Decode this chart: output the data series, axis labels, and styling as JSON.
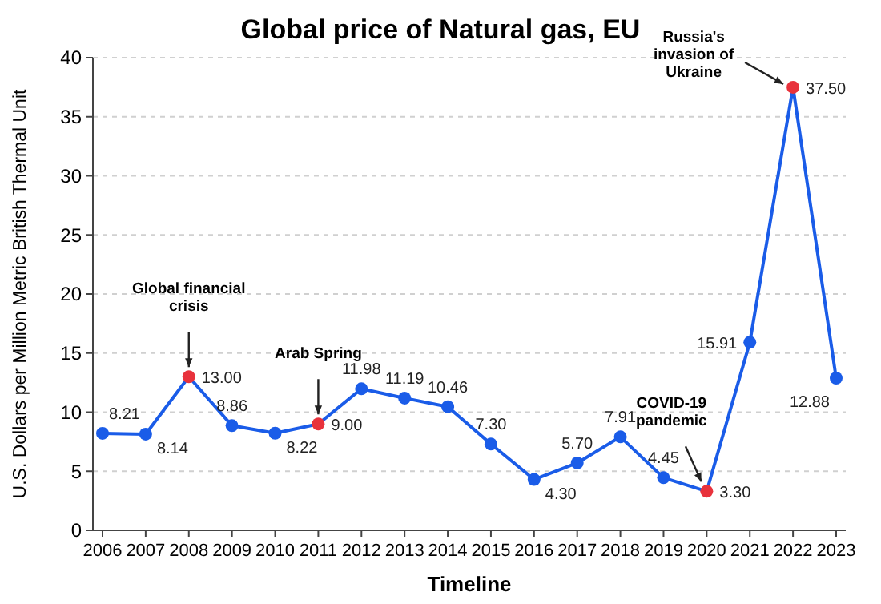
{
  "chart_data": {
    "type": "line",
    "title": "Global price of Natural gas, EU",
    "xlabel": "Timeline",
    "ylabel": "U.S. Dollars per Million Metric British Thermal Unit",
    "categories": [
      "2006",
      "2007",
      "2008",
      "2009",
      "2010",
      "2011",
      "2012",
      "2013",
      "2014",
      "2015",
      "2016",
      "2017",
      "2018",
      "2019",
      "2020",
      "2021",
      "2022",
      "2023"
    ],
    "series": [
      {
        "color": "#1a5ce8",
        "colors": [
          "#1a5ce8",
          "#1a5ce8",
          "#e8323c",
          "#1a5ce8",
          "#1a5ce8",
          "#e8323c",
          "#1a5ce8",
          "#1a5ce8",
          "#1a5ce8",
          "#1a5ce8",
          "#1a5ce8",
          "#1a5ce8",
          "#1a5ce8",
          "#1a5ce8",
          "#e8323c",
          "#1a5ce8",
          "#e8323c",
          "#1a5ce8"
        ],
        "values": [
          8.21,
          8.14,
          13.0,
          8.86,
          8.22,
          9.0,
          11.98,
          11.19,
          10.46,
          7.3,
          4.3,
          5.7,
          7.91,
          4.45,
          3.3,
          15.91,
          37.5,
          12.88
        ],
        "value_labels": [
          "8.21",
          "8.14",
          "13.00",
          "8.86",
          "8.22",
          "9.00",
          "11.98",
          "11.19",
          "10.46",
          "7.30",
          "4.30",
          "5.70",
          "7.91",
          "4.45",
          "3.30",
          "15.91",
          "37.50",
          "12.88"
        ]
      }
    ],
    "ylim": [
      0,
      40
    ],
    "yticks": [
      0,
      5,
      10,
      15,
      20,
      25,
      30,
      35,
      40
    ],
    "grid": "y",
    "marker": "circle",
    "line_style": "solid",
    "annotations": [
      {
        "text": "Global financial crisis",
        "x": "2008",
        "y": 13.0
      },
      {
        "text": "Arab Spring",
        "x": "2011",
        "y": 9.0
      },
      {
        "text": "COVID-19 pandemic",
        "x": "2020",
        "y": 3.3
      },
      {
        "text": "Russia's invasion of Ukraine",
        "x": "2022",
        "y": 37.5
      }
    ]
  }
}
